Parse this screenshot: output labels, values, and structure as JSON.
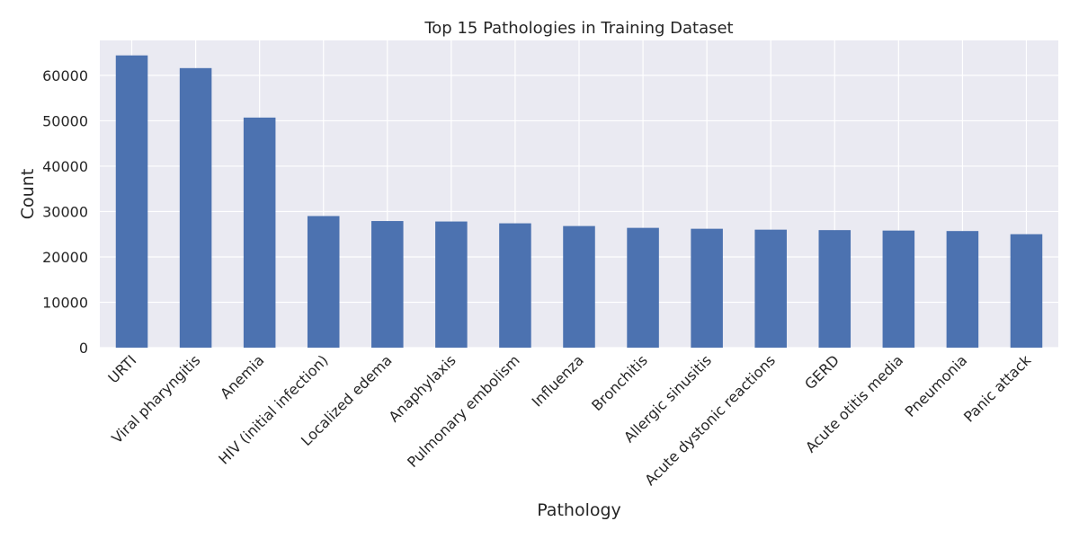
{
  "chart_data": {
    "type": "bar",
    "title": "Top 15 Pathologies in Training Dataset",
    "xlabel": "Pathology",
    "ylabel": "Count",
    "categories": [
      "URTI",
      "Viral pharyngitis",
      "Anemia",
      "HIV (initial infection)",
      "Localized edema",
      "Anaphylaxis",
      "Pulmonary embolism",
      "Influenza",
      "Bronchitis",
      "Allergic sinusitis",
      "Acute dystonic reactions",
      "GERD",
      "Acute otitis media",
      "Pneumonia",
      "Panic attack"
    ],
    "values": [
      64400,
      61600,
      50700,
      29000,
      27900,
      27800,
      27400,
      26800,
      26400,
      26200,
      26000,
      25900,
      25800,
      25700,
      25000
    ],
    "ylim": [
      0,
      67700
    ],
    "yticks": [
      0,
      10000,
      20000,
      30000,
      40000,
      50000,
      60000
    ],
    "grid": true,
    "legend": "none",
    "colors": {
      "bar": "#4c72b0",
      "plot_bg": "#eaeaf2",
      "grid": "#ffffff"
    }
  }
}
